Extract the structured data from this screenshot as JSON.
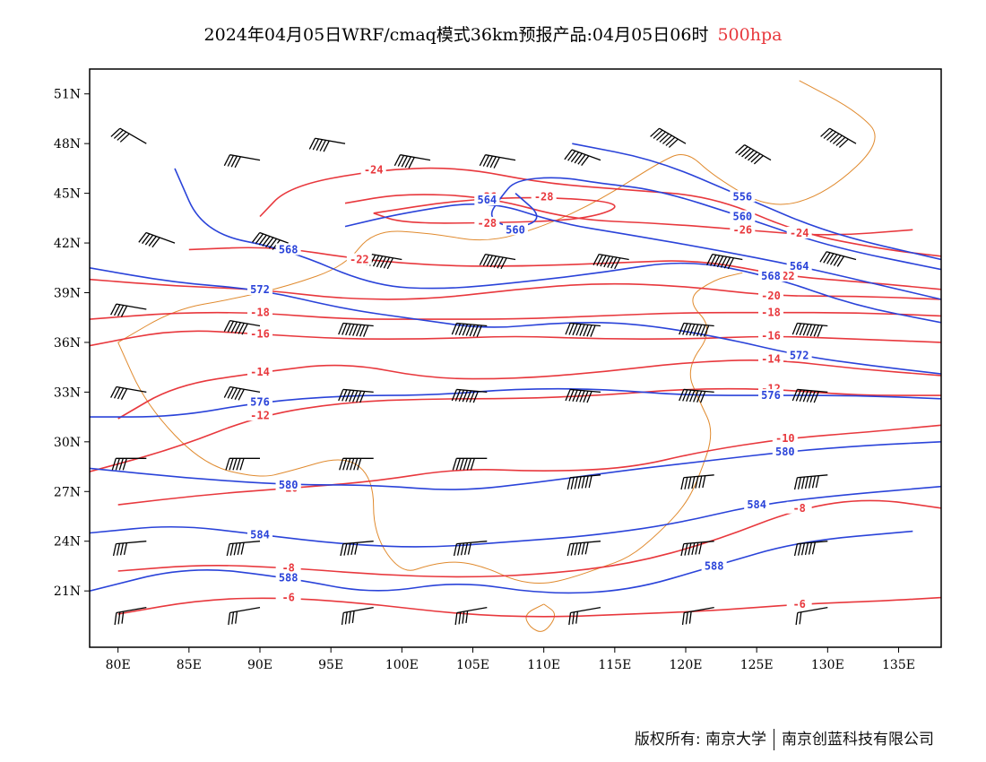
{
  "title": {
    "main": "2024年04月05日WRF/cmaq模式36km预报产品:04月05日06时",
    "level": "500hpa"
  },
  "colors": {
    "temperature": "#e8383d",
    "height": "#2a43d9",
    "border": "#e08a2e",
    "wind": "#000000",
    "frame": "#000000"
  },
  "axes": {
    "lon_range": [
      78,
      138
    ],
    "lat_range": [
      17.6,
      52.5
    ],
    "x_ticks": [
      80,
      85,
      90,
      95,
      100,
      105,
      110,
      115,
      120,
      125,
      130,
      135
    ],
    "x_tick_labels": [
      "80E",
      "85E",
      "90E",
      "95E",
      "100E",
      "105E",
      "110E",
      "115E",
      "120E",
      "125E",
      "130E",
      "135E"
    ],
    "y_ticks": [
      51,
      48,
      45,
      42,
      39,
      36,
      33,
      30,
      27,
      24,
      21
    ],
    "y_tick_labels": [
      "51N",
      "48N",
      "45N",
      "42N",
      "39N",
      "36N",
      "33N",
      "30N",
      "27N",
      "24N",
      "21N"
    ]
  },
  "height_contours": [
    {
      "label": "588",
      "points": [
        [
          78,
          21
        ],
        [
          85,
          22.5
        ],
        [
          92,
          21.8
        ],
        [
          98,
          20.8
        ],
        [
          104,
          21.6
        ],
        [
          110,
          20.8
        ],
        [
          116,
          21
        ],
        [
          122,
          22.5
        ],
        [
          128,
          24
        ],
        [
          136,
          24.6
        ]
      ]
    },
    {
      "label": "584",
      "points": [
        [
          78,
          24.5
        ],
        [
          84,
          25
        ],
        [
          90,
          24.4
        ],
        [
          96,
          23.8
        ],
        [
          102,
          23.6
        ],
        [
          108,
          24
        ],
        [
          113,
          24.3
        ],
        [
          119,
          25
        ],
        [
          125,
          26.2
        ],
        [
          131,
          26.8
        ],
        [
          138,
          27.3
        ]
      ]
    },
    {
      "label": "580",
      "points": [
        [
          78,
          28.4
        ],
        [
          85,
          27.8
        ],
        [
          92,
          27.4
        ],
        [
          98,
          27.4
        ],
        [
          104,
          27
        ],
        [
          110,
          27.6
        ],
        [
          116,
          28.3
        ],
        [
          121,
          28.8
        ],
        [
          127,
          29.4
        ],
        [
          133,
          29.8
        ],
        [
          138,
          30
        ]
      ]
    },
    {
      "label": "576",
      "points": [
        [
          78,
          31.5
        ],
        [
          84,
          31.5
        ],
        [
          90,
          32.4
        ],
        [
          96,
          32.8
        ],
        [
          102,
          32.8
        ],
        [
          108,
          33.2
        ],
        [
          114,
          33.2
        ],
        [
          120,
          32.8
        ],
        [
          126,
          32.8
        ],
        [
          132,
          32.8
        ],
        [
          138,
          32.6
        ]
      ]
    },
    {
      "label": "572",
      "points": [
        [
          78,
          40.5
        ],
        [
          84,
          39.6
        ],
        [
          90,
          39.2
        ],
        [
          96,
          38
        ],
        [
          101,
          37.4
        ],
        [
          106,
          36.8
        ],
        [
          111,
          37.2
        ],
        [
          116,
          37.2
        ],
        [
          122,
          36.4
        ],
        [
          128,
          35.2
        ],
        [
          133,
          34.6
        ],
        [
          138,
          34.1
        ]
      ]
    },
    {
      "label": "568",
      "points": [
        [
          84,
          46.5
        ],
        [
          86,
          42.6
        ],
        [
          92,
          41.6
        ],
        [
          98,
          39.4
        ],
        [
          103,
          39.2
        ],
        [
          108,
          39.6
        ],
        [
          114,
          40.2
        ],
        [
          120,
          41
        ],
        [
          126,
          40
        ],
        [
          132,
          38.2
        ],
        [
          138,
          37.2
        ]
      ]
    },
    {
      "label": "564",
      "points": [
        [
          96,
          43
        ],
        [
          100,
          43.8
        ],
        [
          106,
          44.6
        ],
        [
          111,
          43.2
        ],
        [
          116,
          42.5
        ],
        [
          122,
          41.6
        ],
        [
          128,
          40.6
        ],
        [
          134,
          39.4
        ],
        [
          138,
          38.6
        ]
      ]
    },
    {
      "label": "560",
      "points": [
        [
          108,
          45
        ],
        [
          110,
          43.5
        ],
        [
          108,
          42.8
        ],
        [
          106,
          43.5
        ],
        [
          107,
          44.8
        ],
        [
          108,
          45.8
        ],
        [
          111,
          46
        ],
        [
          114,
          45.6
        ],
        [
          118,
          45.2
        ],
        [
          124,
          43.6
        ],
        [
          130,
          41.8
        ],
        [
          138,
          40.4
        ]
      ]
    },
    {
      "label": "556",
      "points": [
        [
          112,
          48
        ],
        [
          118,
          47
        ],
        [
          124,
          44.8
        ],
        [
          130,
          42.6
        ],
        [
          138,
          41
        ]
      ]
    }
  ],
  "temperature_contours": [
    {
      "label": "-6",
      "points": [
        [
          80,
          19.6
        ],
        [
          86,
          20.5
        ],
        [
          92,
          20.6
        ],
        [
          98,
          20.2
        ],
        [
          104,
          19.6
        ],
        [
          110,
          19.4
        ],
        [
          116,
          19.6
        ],
        [
          122,
          19.8
        ],
        [
          128,
          20.2
        ],
        [
          134,
          20.4
        ],
        [
          138,
          20.6
        ]
      ]
    },
    {
      "label": "-8",
      "points": [
        [
          80,
          22.2
        ],
        [
          86,
          22.6
        ],
        [
          92,
          22.4
        ],
        [
          98,
          22
        ],
        [
          104,
          21.8
        ],
        [
          110,
          22
        ],
        [
          116,
          22.6
        ],
        [
          122,
          24
        ],
        [
          128,
          26
        ],
        [
          133,
          26.6
        ],
        [
          138,
          26
        ]
      ]
    },
    {
      "label": "-10",
      "points": [
        [
          80,
          26.2
        ],
        [
          86,
          26.8
        ],
        [
          92,
          27.2
        ],
        [
          98,
          27.6
        ],
        [
          104,
          28.4
        ],
        [
          110,
          28.2
        ],
        [
          116,
          28.4
        ],
        [
          121,
          29.4
        ],
        [
          127,
          30.2
        ],
        [
          133,
          30.6
        ],
        [
          138,
          31
        ]
      ]
    },
    {
      "label": "-12",
      "points": [
        [
          78,
          28.2
        ],
        [
          84,
          29.6
        ],
        [
          90,
          31.6
        ],
        [
          96,
          32.4
        ],
        [
          102,
          32.6
        ],
        [
          108,
          32.6
        ],
        [
          114,
          32.8
        ],
        [
          120,
          33.2
        ],
        [
          126,
          33.2
        ],
        [
          132,
          32.8
        ],
        [
          138,
          32.8
        ]
      ]
    },
    {
      "label": "-14",
      "points": [
        [
          80,
          31.4
        ],
        [
          84,
          33.4
        ],
        [
          90,
          34.2
        ],
        [
          96,
          34.8
        ],
        [
          102,
          33.8
        ],
        [
          108,
          33.8
        ],
        [
          114,
          34.2
        ],
        [
          120,
          34.8
        ],
        [
          126,
          35
        ],
        [
          132,
          34.4
        ],
        [
          138,
          34
        ]
      ]
    },
    {
      "label": "-16",
      "points": [
        [
          78,
          35.8
        ],
        [
          84,
          36.8
        ],
        [
          90,
          36.5
        ],
        [
          96,
          36.2
        ],
        [
          102,
          36.2
        ],
        [
          108,
          36.4
        ],
        [
          114,
          36.2
        ],
        [
          120,
          36.2
        ],
        [
          126,
          36.4
        ],
        [
          132,
          36.2
        ],
        [
          138,
          36
        ]
      ]
    },
    {
      "label": "-18",
      "points": [
        [
          78,
          37.4
        ],
        [
          84,
          37.8
        ],
        [
          90,
          37.8
        ],
        [
          96,
          37.4
        ],
        [
          102,
          37.4
        ],
        [
          108,
          37.4
        ],
        [
          114,
          37.6
        ],
        [
          120,
          37.8
        ],
        [
          126,
          37.8
        ],
        [
          132,
          37.8
        ],
        [
          138,
          37.6
        ]
      ]
    },
    {
      "label": "-20",
      "points": [
        [
          78,
          39.8
        ],
        [
          84,
          39.4
        ],
        [
          90,
          39.2
        ],
        [
          96,
          38.6
        ],
        [
          102,
          38.6
        ],
        [
          108,
          39.2
        ],
        [
          114,
          39.6
        ],
        [
          120,
          39.4
        ],
        [
          126,
          38.8
        ],
        [
          132,
          38.8
        ],
        [
          138,
          38.6
        ]
      ]
    },
    {
      "label": "-22",
      "points": [
        [
          85,
          41.6
        ],
        [
          91,
          41.8
        ],
        [
          97,
          41
        ],
        [
          103,
          40.6
        ],
        [
          109,
          40.6
        ],
        [
          115,
          40.8
        ],
        [
          121,
          41
        ],
        [
          127,
          40
        ],
        [
          133,
          39.6
        ],
        [
          138,
          39.2
        ]
      ]
    },
    {
      "label": "-24",
      "points": [
        [
          90,
          43.6
        ],
        [
          92,
          45.4
        ],
        [
          98,
          46.4
        ],
        [
          104,
          46.6
        ],
        [
          110,
          45.6
        ],
        [
          116,
          45.2
        ],
        [
          122,
          44.8
        ],
        [
          128,
          42.6
        ],
        [
          134,
          41.6
        ],
        [
          138,
          41.2
        ]
      ]
    },
    {
      "label": "-26",
      "points": [
        [
          96,
          44.4
        ],
        [
          100,
          45
        ],
        [
          106,
          44.8
        ],
        [
          112,
          43.4
        ],
        [
          118,
          43.2
        ],
        [
          124,
          42.8
        ],
        [
          130,
          42.4
        ],
        [
          136,
          42.8
        ]
      ]
    },
    {
      "label": "-28",
      "points": [
        [
          98,
          43.8
        ],
        [
          104,
          44.6
        ],
        [
          110,
          44.8
        ],
        [
          116,
          44.4
        ],
        [
          113,
          43.4
        ],
        [
          106,
          43.2
        ],
        [
          100,
          43.2
        ],
        [
          98,
          43.8
        ]
      ]
    }
  ],
  "borders": [
    [
      [
        80,
        36
      ],
      [
        84,
        38
      ],
      [
        88,
        38.6
      ],
      [
        92,
        39.4
      ],
      [
        96,
        40.6
      ],
      [
        98,
        42.8
      ],
      [
        102,
        42.6
      ],
      [
        106,
        42
      ],
      [
        110,
        43
      ],
      [
        114,
        44.6
      ],
      [
        118,
        46.8
      ],
      [
        120,
        47.6
      ],
      [
        122,
        46
      ],
      [
        126,
        44
      ],
      [
        130,
        45
      ],
      [
        134,
        48.2
      ],
      [
        132,
        50
      ],
      [
        128,
        51.8
      ]
    ],
    [
      [
        80,
        36
      ],
      [
        82,
        32.2
      ],
      [
        86,
        28.6
      ],
      [
        90,
        27.8
      ],
      [
        92,
        28.2
      ],
      [
        96,
        29.2
      ],
      [
        98,
        27.8
      ],
      [
        98,
        24.4
      ],
      [
        100,
        22
      ],
      [
        102,
        22.6
      ],
      [
        104,
        22.8
      ],
      [
        106,
        22.4
      ],
      [
        108,
        21.6
      ],
      [
        110,
        21.4
      ],
      [
        112,
        21.8
      ],
      [
        114,
        22.4
      ],
      [
        116,
        23
      ],
      [
        118,
        24.4
      ],
      [
        120,
        26.2
      ],
      [
        121,
        28
      ],
      [
        122,
        30.6
      ],
      [
        121,
        32.4
      ],
      [
        120,
        34.4
      ],
      [
        122,
        36.8
      ],
      [
        120,
        38.6
      ],
      [
        122,
        39.8
      ],
      [
        124,
        40.2
      ]
    ],
    [
      [
        110,
        20.2
      ],
      [
        111,
        19.6
      ],
      [
        110,
        18.4
      ],
      [
        109,
        18.8
      ],
      [
        108.6,
        19.6
      ],
      [
        110,
        20.2
      ]
    ]
  ],
  "wind_barbs": [
    {
      "lon": 82,
      "lat": 48,
      "speed": 16,
      "dir": 300
    },
    {
      "lon": 90,
      "lat": 47,
      "speed": 16,
      "dir": 280
    },
    {
      "lon": 96,
      "lat": 48,
      "speed": 20,
      "dir": 280
    },
    {
      "lon": 102,
      "lat": 47,
      "speed": 20,
      "dir": 280
    },
    {
      "lon": 108,
      "lat": 47,
      "speed": 20,
      "dir": 280
    },
    {
      "lon": 114,
      "lat": 47,
      "speed": 24,
      "dir": 290
    },
    {
      "lon": 120,
      "lat": 48,
      "speed": 28,
      "dir": 300
    },
    {
      "lon": 126,
      "lat": 47,
      "speed": 28,
      "dir": 300
    },
    {
      "lon": 132,
      "lat": 48,
      "speed": 28,
      "dir": 300
    },
    {
      "lon": 84,
      "lat": 42,
      "speed": 20,
      "dir": 290
    },
    {
      "lon": 92,
      "lat": 42,
      "speed": 28,
      "dir": 290
    },
    {
      "lon": 100,
      "lat": 41,
      "speed": 28,
      "dir": 280
    },
    {
      "lon": 108,
      "lat": 41,
      "speed": 28,
      "dir": 280
    },
    {
      "lon": 116,
      "lat": 41,
      "speed": 28,
      "dir": 280
    },
    {
      "lon": 124,
      "lat": 41,
      "speed": 28,
      "dir": 280
    },
    {
      "lon": 132,
      "lat": 41,
      "speed": 24,
      "dir": 285
    },
    {
      "lon": 82,
      "lat": 38,
      "speed": 16,
      "dir": 280
    },
    {
      "lon": 90,
      "lat": 37,
      "speed": 24,
      "dir": 280
    },
    {
      "lon": 98,
      "lat": 37,
      "speed": 32,
      "dir": 275
    },
    {
      "lon": 106,
      "lat": 37,
      "speed": 32,
      "dir": 275
    },
    {
      "lon": 114,
      "lat": 37,
      "speed": 32,
      "dir": 275
    },
    {
      "lon": 122,
      "lat": 37,
      "speed": 32,
      "dir": 275
    },
    {
      "lon": 130,
      "lat": 37,
      "speed": 32,
      "dir": 275
    },
    {
      "lon": 82,
      "lat": 33,
      "speed": 16,
      "dir": 280
    },
    {
      "lon": 90,
      "lat": 33,
      "speed": 20,
      "dir": 280
    },
    {
      "lon": 98,
      "lat": 33,
      "speed": 28,
      "dir": 275
    },
    {
      "lon": 106,
      "lat": 33,
      "speed": 28,
      "dir": 275
    },
    {
      "lon": 114,
      "lat": 33,
      "speed": 28,
      "dir": 275
    },
    {
      "lon": 122,
      "lat": 33,
      "speed": 28,
      "dir": 275
    },
    {
      "lon": 130,
      "lat": 33,
      "speed": 28,
      "dir": 275
    },
    {
      "lon": 82,
      "lat": 29,
      "speed": 16,
      "dir": 270
    },
    {
      "lon": 90,
      "lat": 29,
      "speed": 20,
      "dir": 270
    },
    {
      "lon": 98,
      "lat": 29,
      "speed": 24,
      "dir": 270
    },
    {
      "lon": 106,
      "lat": 29,
      "speed": 24,
      "dir": 270
    },
    {
      "lon": 114,
      "lat": 28,
      "speed": 28,
      "dir": 265
    },
    {
      "lon": 122,
      "lat": 28,
      "speed": 28,
      "dir": 265
    },
    {
      "lon": 130,
      "lat": 28,
      "speed": 28,
      "dir": 265
    },
    {
      "lon": 82,
      "lat": 24,
      "speed": 16,
      "dir": 265
    },
    {
      "lon": 90,
      "lat": 24,
      "speed": 20,
      "dir": 265
    },
    {
      "lon": 98,
      "lat": 24,
      "speed": 20,
      "dir": 265
    },
    {
      "lon": 106,
      "lat": 24,
      "speed": 20,
      "dir": 265
    },
    {
      "lon": 114,
      "lat": 24,
      "speed": 24,
      "dir": 265
    },
    {
      "lon": 122,
      "lat": 24,
      "speed": 24,
      "dir": 265
    },
    {
      "lon": 130,
      "lat": 24,
      "speed": 24,
      "dir": 265
    },
    {
      "lon": 82,
      "lat": 20,
      "speed": 12,
      "dir": 260
    },
    {
      "lon": 90,
      "lat": 20,
      "speed": 12,
      "dir": 260
    },
    {
      "lon": 98,
      "lat": 20,
      "speed": 16,
      "dir": 260
    },
    {
      "lon": 106,
      "lat": 20,
      "speed": 16,
      "dir": 260
    },
    {
      "lon": 114,
      "lat": 20,
      "speed": 12,
      "dir": 260
    },
    {
      "lon": 122,
      "lat": 20,
      "speed": 12,
      "dir": 260
    },
    {
      "lon": 130,
      "lat": 20,
      "speed": 8,
      "dir": 260
    }
  ],
  "footer": {
    "copyright": "版权所有: 南京大学",
    "company": "南京创蓝科技有限公司"
  }
}
